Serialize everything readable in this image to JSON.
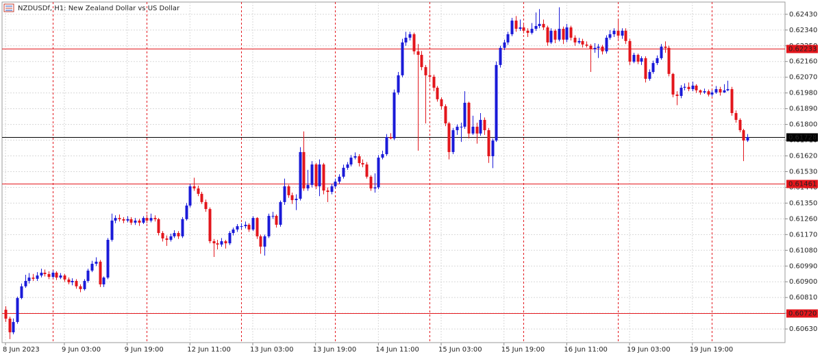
{
  "chart_data": {
    "type": "candlestick",
    "title": "NZDUSDf, H1:  New Zealand Dollar vs US Dollar",
    "up_color": "#1a1ad8",
    "down_color": "#e3161c",
    "grid": true,
    "period_separators": true,
    "xlim": [
      -0.87,
      198.6
    ],
    "ylim": [
      0.60552,
      0.625
    ],
    "xticks": [
      {
        "value": 0,
        "label": "8 Jun 2023"
      },
      {
        "value": 15,
        "label": "9 Jun 03:00"
      },
      {
        "value": 31,
        "label": "9 Jun 19:00"
      },
      {
        "value": 47,
        "label": "12 Jun 11:00"
      },
      {
        "value": 63,
        "label": "13 Jun 03:00"
      },
      {
        "value": 79,
        "label": "13 Jun 19:00"
      },
      {
        "value": 95,
        "label": "14 Jun 11:00"
      },
      {
        "value": 111,
        "label": "15 Jun 03:00"
      },
      {
        "value": 127,
        "label": "15 Jun 19:00"
      },
      {
        "value": 143,
        "label": "16 Jun 11:00"
      },
      {
        "value": 159,
        "label": "19 Jun 03:00"
      },
      {
        "value": 175,
        "label": "19 Jun 19:00"
      }
    ],
    "yticks": [
      {
        "value": 0.6243,
        "label": "0.62430"
      },
      {
        "value": 0.6234,
        "label": "0.62340"
      },
      {
        "value": 0.6225,
        "label": "0.62250"
      },
      {
        "value": 0.6216,
        "label": "0.62160"
      },
      {
        "value": 0.6207,
        "label": "0.62070"
      },
      {
        "value": 0.6198,
        "label": "0.61980"
      },
      {
        "value": 0.6189,
        "label": "0.61890"
      },
      {
        "value": 0.618,
        "label": "0.61800"
      },
      {
        "value": 0.6171,
        "label": "0.61710"
      },
      {
        "value": 0.6162,
        "label": "0.61620"
      },
      {
        "value": 0.6153,
        "label": "0.61530"
      },
      {
        "value": 0.6144,
        "label": "0.61440"
      },
      {
        "value": 0.6135,
        "label": "0.61350"
      },
      {
        "value": 0.6126,
        "label": "0.61260"
      },
      {
        "value": 0.6117,
        "label": "0.61170"
      },
      {
        "value": 0.6108,
        "label": "0.61080"
      },
      {
        "value": 0.6099,
        "label": "0.60990"
      },
      {
        "value": 0.609,
        "label": "0.60900"
      },
      {
        "value": 0.6081,
        "label": "0.60810"
      },
      {
        "value": 0.6072,
        "label": "0.60720"
      },
      {
        "value": 0.6063,
        "label": "0.60630"
      }
    ],
    "hlines": [
      0.62233,
      0.61461,
      {
        "value": 0.6072,
        "label": "0.60720"
      }
    ],
    "hline_color": "#e3161c",
    "last_price": 0.61728,
    "last_price_color": "#000000",
    "open": [
      0.6074,
      0.60689,
      0.60611,
      0.6067,
      0.60807,
      0.60874,
      0.60905,
      0.60924,
      0.60917,
      0.60936,
      0.60952,
      0.60944,
      0.60928,
      0.60952,
      0.60924,
      0.60936,
      0.60913,
      0.60897,
      0.60905,
      0.60874,
      0.60858,
      0.60905,
      0.60964,
      0.61003,
      0.61015,
      0.60885,
      0.60924,
      0.6114,
      0.6125,
      0.61265,
      0.61258,
      0.6125,
      0.61258,
      0.61238,
      0.6125,
      0.61238,
      0.61265,
      0.6125,
      0.61265,
      0.61258,
      0.61179,
      0.61148,
      0.6114,
      0.6116,
      0.61179,
      0.6116,
      0.61258,
      0.61336,
      0.61446,
      0.61434,
      0.61403,
      0.61356,
      0.61316,
      0.61132,
      0.6112,
      0.61113,
      0.61132,
      0.6112,
      0.61179,
      0.61199,
      0.61218,
      0.61218,
      0.61226,
      0.61199,
      0.61265,
      0.6116,
      0.61101,
      0.6116,
      0.61277,
      0.61277,
      0.61226,
      0.61356,
      0.61446,
      0.61395,
      0.61367,
      0.61375,
      0.61642,
      0.61434,
      0.61454,
      0.61571,
      0.61446,
      0.61571,
      0.61422,
      0.61414,
      0.61446,
      0.61473,
      0.61501,
      0.61552,
      0.61571,
      0.6161,
      0.61618,
      0.61579,
      0.61571,
      0.61501,
      0.61434,
      0.6144,
      0.6161,
      0.6163,
      0.61728,
      0.6172,
      0.61983,
      0.62081,
      0.62269,
      0.62296,
      0.62316,
      0.62218,
      0.62198,
      0.62128,
      0.62081,
      0.62073,
      0.6201,
      0.61944,
      0.61904,
      0.61806,
      0.61642,
      0.61767,
      0.61787,
      0.61787,
      0.61924,
      0.61748,
      0.61787,
      0.61748,
      0.61826,
      0.61767,
      0.61618,
      0.61708,
      0.6214,
      0.62238,
      0.62269,
      0.62316,
      0.62394,
      0.62347,
      0.62355,
      0.62336,
      0.62324,
      0.62347,
      0.62363,
      0.62375,
      0.62355,
      0.62269,
      0.62336,
      0.62285,
      0.62347,
      0.62285,
      0.62355,
      0.62296,
      0.62269,
      0.62277,
      0.62257,
      0.6225,
      0.6223,
      0.62238,
      0.62245,
      0.62218,
      0.62296,
      0.62316,
      0.62336,
      0.62308,
      0.62336,
      0.62277,
      0.62159,
      0.62198,
      0.62159,
      0.62179,
      0.62061,
      0.621,
      0.62151,
      0.62179,
      0.62245,
      0.62238,
      0.62089,
      0.61971,
      0.61963,
      0.6201,
      0.62015,
      0.62002,
      0.62022,
      0.61995,
      0.61983,
      0.6199,
      0.61971,
      0.61983,
      0.62002,
      0.61983,
      0.61995,
      0.62002,
      0.61865,
      0.61826,
      0.61767,
      0.61708
    ],
    "high": [
      0.6076,
      0.607,
      0.6069,
      0.60815,
      0.6089,
      0.6094,
      0.6095,
      0.60945,
      0.60955,
      0.60975,
      0.6097,
      0.6096,
      0.60965,
      0.6096,
      0.6095,
      0.60945,
      0.60925,
      0.6092,
      0.60915,
      0.60885,
      0.60915,
      0.60975,
      0.6102,
      0.6104,
      0.61025,
      0.6093,
      0.6115,
      0.6129,
      0.6128,
      0.61285,
      0.6127,
      0.61275,
      0.6127,
      0.61265,
      0.6126,
      0.61275,
      0.61285,
      0.6129,
      0.6128,
      0.61265,
      0.6119,
      0.61165,
      0.61175,
      0.61195,
      0.6119,
      0.6127,
      0.6135,
      0.6146,
      0.61495,
      0.6145,
      0.61415,
      0.6137,
      0.61325,
      0.61145,
      0.6114,
      0.6115,
      0.6114,
      0.6119,
      0.6121,
      0.6123,
      0.61235,
      0.61245,
      0.61235,
      0.61275,
      0.6127,
      0.6117,
      0.6117,
      0.6129,
      0.613,
      0.61285,
      0.61365,
      0.6149,
      0.61455,
      0.6141,
      0.614,
      0.6167,
      0.6176,
      0.6154,
      0.6159,
      0.6158,
      0.616,
      0.6158,
      0.6144,
      0.6146,
      0.6149,
      0.61515,
      0.6157,
      0.61585,
      0.61625,
      0.6164,
      0.6163,
      0.616,
      0.61585,
      0.6151,
      0.6152,
      0.61625,
      0.6165,
      0.61745,
      0.6175,
      0.62,
      0.621,
      0.6229,
      0.6233,
      0.6233,
      0.62325,
      0.6226,
      0.6222,
      0.6214,
      0.6216,
      0.62085,
      0.6202,
      0.61955,
      0.61915,
      0.61815,
      0.6178,
      0.618,
      0.6181,
      0.6199,
      0.6193,
      0.6185,
      0.6181,
      0.61865,
      0.6184,
      0.6178,
      0.6172,
      0.6216,
      0.6225,
      0.62285,
      0.6233,
      0.6241,
      0.6242,
      0.624,
      0.6237,
      0.6235,
      0.6238,
      0.6244,
      0.6246,
      0.624,
      0.62365,
      0.6235,
      0.62345,
      0.6247,
      0.6236,
      0.62375,
      0.62365,
      0.6231,
      0.62295,
      0.6229,
      0.62275,
      0.6226,
      0.62265,
      0.6226,
      0.62255,
      0.6231,
      0.6234,
      0.6235,
      0.624,
      0.6235,
      0.6235,
      0.6229,
      0.6221,
      0.62205,
      0.6219,
      0.6219,
      0.62115,
      0.62165,
      0.62195,
      0.6226,
      0.62275,
      0.6225,
      0.62095,
      0.6199,
      0.62025,
      0.62035,
      0.6204,
      0.62045,
      0.6203,
      0.62,
      0.62005,
      0.62,
      0.61995,
      0.6202,
      0.62015,
      0.6203,
      0.6205,
      0.62015,
      0.6188,
      0.61835,
      0.61775,
      0.61745
    ],
    "low": [
      0.6067,
      0.60572,
      0.606,
      0.6066,
      0.608,
      0.60865,
      0.6089,
      0.60905,
      0.60905,
      0.60925,
      0.6093,
      0.60915,
      0.6092,
      0.6091,
      0.60915,
      0.609,
      0.60885,
      0.6088,
      0.6086,
      0.6084,
      0.6085,
      0.60895,
      0.60955,
      0.6099,
      0.6087,
      0.6087,
      0.60915,
      0.6113,
      0.61235,
      0.61245,
      0.61235,
      0.6124,
      0.61225,
      0.61225,
      0.6122,
      0.6123,
      0.61235,
      0.6124,
      0.61245,
      0.61165,
      0.6113,
      0.61105,
      0.6113,
      0.6115,
      0.61145,
      0.6115,
      0.6125,
      0.61325,
      0.6142,
      0.6139,
      0.61345,
      0.613,
      0.6112,
      0.61042,
      0.61085,
      0.611,
      0.6109,
      0.6111,
      0.61165,
      0.61185,
      0.612,
      0.61205,
      0.61185,
      0.6119,
      0.61145,
      0.6106,
      0.6105,
      0.6115,
      0.6126,
      0.6121,
      0.61215,
      0.6134,
      0.6138,
      0.61345,
      0.6131,
      0.61365,
      0.6142,
      0.6142,
      0.6144,
      0.6143,
      0.6139,
      0.614,
      0.61356,
      0.614,
      0.61435,
      0.6146,
      0.6149,
      0.6154,
      0.6156,
      0.616,
      0.6156,
      0.61555,
      0.6149,
      0.6142,
      0.6141,
      0.6143,
      0.616,
      0.6162,
      0.61715,
      0.6171,
      0.6197,
      0.6207,
      0.6225,
      0.6228,
      0.622,
      0.6165,
      0.6211,
      0.61806,
      0.6205,
      0.6199,
      0.6193,
      0.61885,
      0.6179,
      0.616,
      0.6163,
      0.6174,
      0.617,
      0.61775,
      0.6172,
      0.6174,
      0.6169,
      0.61735,
      0.6174,
      0.6158,
      0.6155,
      0.617,
      0.62125,
      0.62225,
      0.62255,
      0.62305,
      0.6233,
      0.62335,
      0.6232,
      0.623,
      0.62315,
      0.62335,
      0.6235,
      0.6234,
      0.6225,
      0.6226,
      0.62265,
      0.62275,
      0.6226,
      0.6227,
      0.6228,
      0.6225,
      0.6226,
      0.6224,
      0.6224,
      0.621,
      0.6221,
      0.6218,
      0.622,
      0.62205,
      0.62285,
      0.623,
      0.6229,
      0.6229,
      0.6226,
      0.6214,
      0.6215,
      0.62145,
      0.6214,
      0.6204,
      0.6205,
      0.6209,
      0.6214,
      0.6217,
      0.6221,
      0.62075,
      0.61955,
      0.6191,
      0.6195,
      0.61995,
      0.6199,
      0.6199,
      0.6198,
      0.6197,
      0.61975,
      0.6196,
      0.6196,
      0.61975,
      0.61965,
      0.6198,
      0.6199,
      0.6185,
      0.6181,
      0.61755,
      0.6159,
      0.617
    ],
    "close": [
      0.60689,
      0.60611,
      0.6067,
      0.60807,
      0.60874,
      0.60905,
      0.60924,
      0.60917,
      0.60936,
      0.60952,
      0.60944,
      0.60928,
      0.60952,
      0.60924,
      0.60936,
      0.60913,
      0.60897,
      0.60905,
      0.60874,
      0.60858,
      0.60905,
      0.60964,
      0.61003,
      0.61015,
      0.60885,
      0.60924,
      0.6114,
      0.6125,
      0.61265,
      0.61258,
      0.6125,
      0.61258,
      0.61238,
      0.6125,
      0.61238,
      0.61265,
      0.6125,
      0.61265,
      0.61258,
      0.61179,
      0.61148,
      0.6114,
      0.6116,
      0.61179,
      0.6116,
      0.61258,
      0.61336,
      0.61446,
      0.61434,
      0.61403,
      0.61356,
      0.61316,
      0.61132,
      0.6112,
      0.61113,
      0.61132,
      0.6112,
      0.61179,
      0.61199,
      0.61218,
      0.61218,
      0.61226,
      0.61199,
      0.61265,
      0.6116,
      0.61101,
      0.6116,
      0.61277,
      0.61277,
      0.61226,
      0.61356,
      0.61446,
      0.61395,
      0.61367,
      0.61375,
      0.61642,
      0.61434,
      0.61454,
      0.61571,
      0.61446,
      0.61571,
      0.61422,
      0.61414,
      0.61446,
      0.61473,
      0.61501,
      0.61552,
      0.61571,
      0.6161,
      0.61618,
      0.61579,
      0.61571,
      0.61501,
      0.61434,
      0.6144,
      0.6161,
      0.6163,
      0.61728,
      0.6172,
      0.61983,
      0.62081,
      0.62269,
      0.62296,
      0.62316,
      0.62218,
      0.62198,
      0.62128,
      0.62081,
      0.62073,
      0.6201,
      0.61944,
      0.61904,
      0.61806,
      0.61642,
      0.61767,
      0.61787,
      0.61787,
      0.61924,
      0.61748,
      0.61787,
      0.61748,
      0.61826,
      0.61767,
      0.61618,
      0.61708,
      0.6214,
      0.62238,
      0.62269,
      0.62316,
      0.62394,
      0.62347,
      0.62355,
      0.62336,
      0.62324,
      0.62347,
      0.62363,
      0.62375,
      0.62355,
      0.62269,
      0.62336,
      0.62285,
      0.62347,
      0.62285,
      0.62355,
      0.62296,
      0.62269,
      0.62277,
      0.62257,
      0.6225,
      0.6223,
      0.62238,
      0.62245,
      0.62218,
      0.62296,
      0.62316,
      0.62336,
      0.62308,
      0.62336,
      0.62277,
      0.62159,
      0.62198,
      0.62159,
      0.62179,
      0.62061,
      0.621,
      0.62151,
      0.62179,
      0.62245,
      0.62238,
      0.62089,
      0.61971,
      0.61963,
      0.6201,
      0.62015,
      0.62002,
      0.62022,
      0.61995,
      0.61983,
      0.6199,
      0.61971,
      0.61983,
      0.62002,
      0.61983,
      0.61995,
      0.62002,
      0.61865,
      0.61826,
      0.61767,
      0.61708,
      0.61728
    ]
  }
}
